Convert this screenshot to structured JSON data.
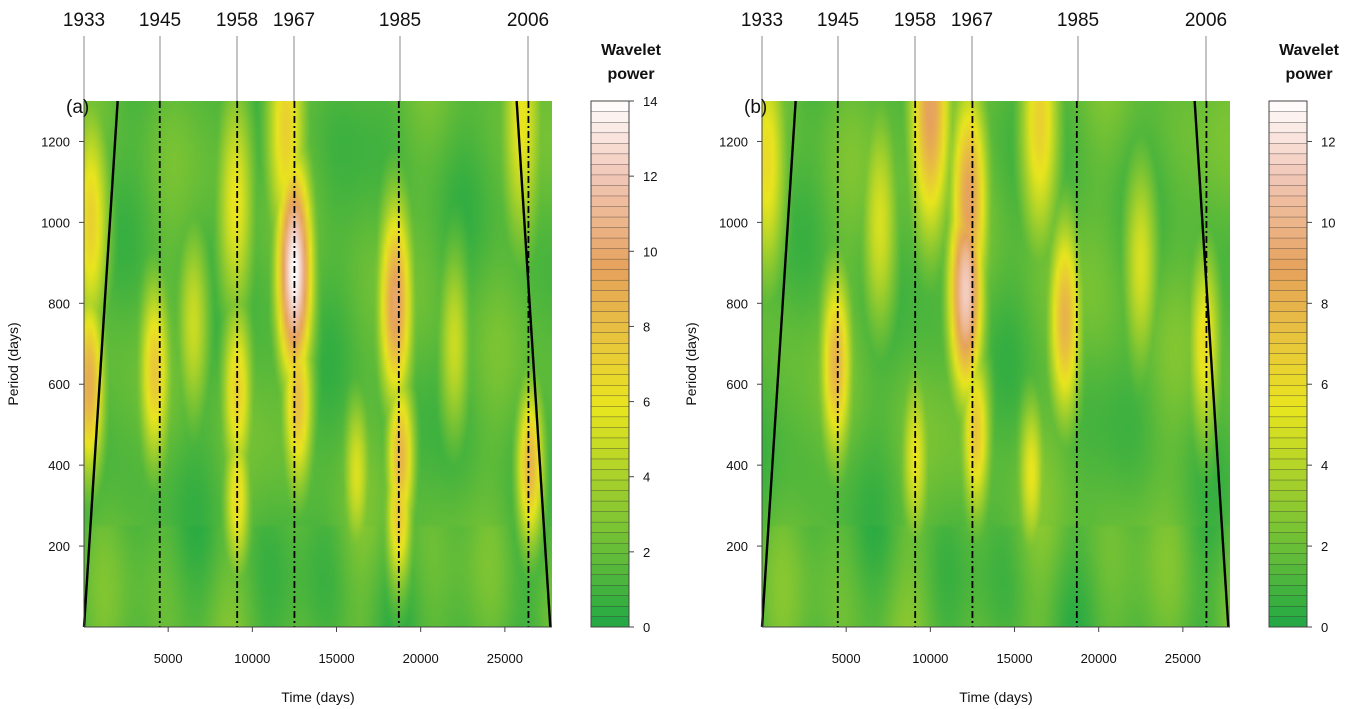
{
  "figure": {
    "colors": {
      "green": "#21a845",
      "yellow": "#e9e51e",
      "orange": "#e6a25c",
      "pink": "#f2c7b8",
      "white": "#ffffff",
      "event_line": "#000000",
      "cone": "#000000"
    }
  },
  "chart_data": [
    {
      "type": "heatmap",
      "panel_label": "(a)",
      "xlabel": "Time (days)",
      "ylabel": "Period (days)",
      "xlim": [
        0,
        27800
      ],
      "ylim": [
        0,
        1300
      ],
      "x_ticks": [
        5000,
        10000,
        15000,
        20000,
        25000
      ],
      "x_tick_labels": [
        "5000",
        "10000",
        "15000",
        "20000",
        "25000"
      ],
      "y_ticks": [
        200,
        400,
        600,
        800,
        1000,
        1200
      ],
      "y_tick_labels": [
        "200",
        "400",
        "600",
        "800",
        "1000",
        "1200"
      ],
      "event_years": [
        "1933",
        "1945",
        "1958",
        "1967",
        "1985",
        "2006"
      ],
      "event_lines_x": [
        4500,
        9100,
        12500,
        18700,
        26400
      ],
      "event_lines_style": "dash-dot",
      "cone_of_influence": {
        "left": [
          [
            0,
            0
          ],
          [
            2000,
            1300
          ]
        ],
        "right": [
          [
            25700,
            1300
          ],
          [
            27700,
            0
          ]
        ]
      },
      "colorbar": {
        "title_line1": "Wavelet",
        "title_line2": "power",
        "min": 0,
        "max": 14,
        "ticks": [
          0,
          2,
          4,
          6,
          8,
          10,
          12,
          14
        ],
        "tick_labels": [
          "0",
          "2",
          "4",
          "6",
          "8",
          "10",
          "12",
          "14"
        ],
        "levels": 50
      },
      "power_peaks": [
        {
          "x": 12500,
          "y": 880,
          "power": 14
        },
        {
          "x": 12000,
          "y": 1230,
          "power": 7
        },
        {
          "x": 12700,
          "y": 560,
          "power": 8
        },
        {
          "x": 18500,
          "y": 800,
          "power": 10
        },
        {
          "x": 18800,
          "y": 420,
          "power": 8.5
        },
        {
          "x": 18700,
          "y": 280,
          "power": 7.5
        },
        {
          "x": 9100,
          "y": 580,
          "power": 7
        },
        {
          "x": 9100,
          "y": 320,
          "power": 6.5
        },
        {
          "x": 9000,
          "y": 1050,
          "power": 6
        },
        {
          "x": 4200,
          "y": 630,
          "power": 7.5
        },
        {
          "x": 300,
          "y": 600,
          "power": 9
        },
        {
          "x": 400,
          "y": 1000,
          "power": 7
        },
        {
          "x": 26500,
          "y": 400,
          "power": 8.5
        },
        {
          "x": 16200,
          "y": 380,
          "power": 5.5
        },
        {
          "x": 6500,
          "y": 750,
          "power": 5
        },
        {
          "x": 22000,
          "y": 700,
          "power": 5
        },
        {
          "x": 26000,
          "y": 1250,
          "power": 6
        }
      ]
    },
    {
      "type": "heatmap",
      "panel_label": "(b)",
      "xlabel": "Time (days)",
      "ylabel": "Period (days)",
      "xlim": [
        0,
        27800
      ],
      "ylim": [
        0,
        1300
      ],
      "x_ticks": [
        5000,
        10000,
        15000,
        20000,
        25000
      ],
      "x_tick_labels": [
        "5000",
        "10000",
        "15000",
        "20000",
        "25000"
      ],
      "y_ticks": [
        200,
        400,
        600,
        800,
        1000,
        1200
      ],
      "y_tick_labels": [
        "200",
        "400",
        "600",
        "800",
        "1000",
        "1200"
      ],
      "event_years": [
        "1933",
        "1945",
        "1958",
        "1967",
        "1985",
        "2006"
      ],
      "event_lines_x": [
        4500,
        9100,
        12500,
        18700,
        26400
      ],
      "event_lines_style": "dash-dot",
      "cone_of_influence": {
        "left": [
          [
            0,
            0
          ],
          [
            2000,
            1300
          ]
        ],
        "right": [
          [
            25700,
            1300
          ],
          [
            27700,
            0
          ]
        ]
      },
      "colorbar": {
        "title_line1": "Wavelet",
        "title_line2": "power",
        "min": 0,
        "max": 13,
        "ticks": [
          0,
          2,
          4,
          6,
          8,
          10,
          12
        ],
        "tick_labels": [
          "0",
          "2",
          "4",
          "6",
          "8",
          "10",
          "12"
        ],
        "levels": 50
      },
      "power_peaks": [
        {
          "x": 12100,
          "y": 830,
          "power": 11.5
        },
        {
          "x": 12300,
          "y": 1050,
          "power": 9
        },
        {
          "x": 12700,
          "y": 480,
          "power": 7
        },
        {
          "x": 10000,
          "y": 1280,
          "power": 9
        },
        {
          "x": 18000,
          "y": 760,
          "power": 8
        },
        {
          "x": 4400,
          "y": 650,
          "power": 8
        },
        {
          "x": 300,
          "y": 1150,
          "power": 6
        },
        {
          "x": 16500,
          "y": 1250,
          "power": 6.5
        },
        {
          "x": 9100,
          "y": 420,
          "power": 5.5
        },
        {
          "x": 26300,
          "y": 700,
          "power": 6
        },
        {
          "x": 16000,
          "y": 380,
          "power": 5.5
        },
        {
          "x": 7000,
          "y": 1000,
          "power": 5
        },
        {
          "x": 22500,
          "y": 900,
          "power": 5
        }
      ]
    }
  ]
}
